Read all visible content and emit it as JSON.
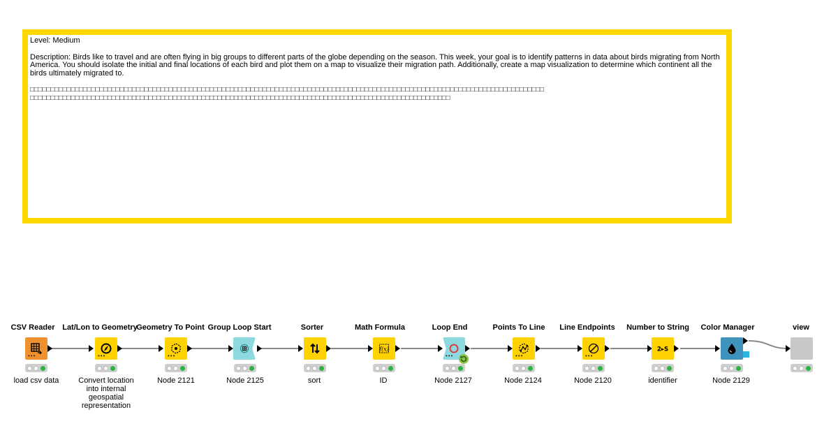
{
  "annotation": {
    "border_color": "#FFD700",
    "level": "Level: Medium",
    "description": "Description: Birds like to travel and are often flying in big groups to different parts of the globe depending on the season. This week, your goal is to identify patterns in data about birds migrating from North America. You should isolate the initial and final locations of each bird and plot them on a map to visualize their migration path. Additionally, create a map visualization to determine which continent all the birds ultimately migrated to.",
    "garbled_line1": "□□□□□□□□□□□□□□□□□□□□□□□□□□□□□□□□□□□□□□□□□□□□□□□□□□□□□□□□□□□□□□□□□□□□□□□□□□□□□□□□□□□□□□□□□□□□□□□□□□□□□□□□□□□□□□□□□□□□□□□□□□□□□□",
    "garbled_line2": "□□□□□□□□□□□□□□□□□□□□□□□□□□□□□□□□□□□□□□□□□□□□□□□□□□□□□□□□□□□□□□□□□□□□□□□□□□□□□□□□□□□□□□□□□□□□□□□□□□□□□□□"
  },
  "nodes": [
    {
      "title": "CSV Reader",
      "label": "load csv data",
      "color": "#F0912F",
      "icon": "table-icon"
    },
    {
      "title": "Lat/Lon to Geometry",
      "label": "Convert location into internal geospatial representation",
      "color": "#FFD200",
      "icon": "compass-icon"
    },
    {
      "title": "Geometry To Point",
      "label": "Node 2121",
      "color": "#FFD200",
      "icon": "point-icon"
    },
    {
      "title": "Group Loop Start",
      "label": "Node 2125",
      "color": "#8ED8E0",
      "icon": "loop-start-icon"
    },
    {
      "title": "Sorter",
      "label": "sort",
      "color": "#FFD200",
      "icon": "sort-icon"
    },
    {
      "title": "Math Formula",
      "label": "ID",
      "color": "#FFD200",
      "icon": "formula-icon"
    },
    {
      "title": "Loop End",
      "label": "Node 2127",
      "color": "#8ED8E0",
      "icon": "loop-end-icon"
    },
    {
      "title": "Points To Line",
      "label": "Node 2124",
      "color": "#FFD200",
      "icon": "points-line-icon"
    },
    {
      "title": "Line Endpoints",
      "label": "Node 2120",
      "color": "#FFD200",
      "icon": "line-endpoints-icon"
    },
    {
      "title": "Number to String",
      "label": "identifier",
      "color": "#FFD200",
      "icon": "number-string-icon"
    },
    {
      "title": "Color Manager",
      "label": "Node 2129",
      "color": "#3F93BA",
      "icon": "color-drop-icon"
    },
    {
      "title": "view",
      "label": "",
      "color": "#C8C8C8",
      "icon": "component-icon"
    }
  ]
}
